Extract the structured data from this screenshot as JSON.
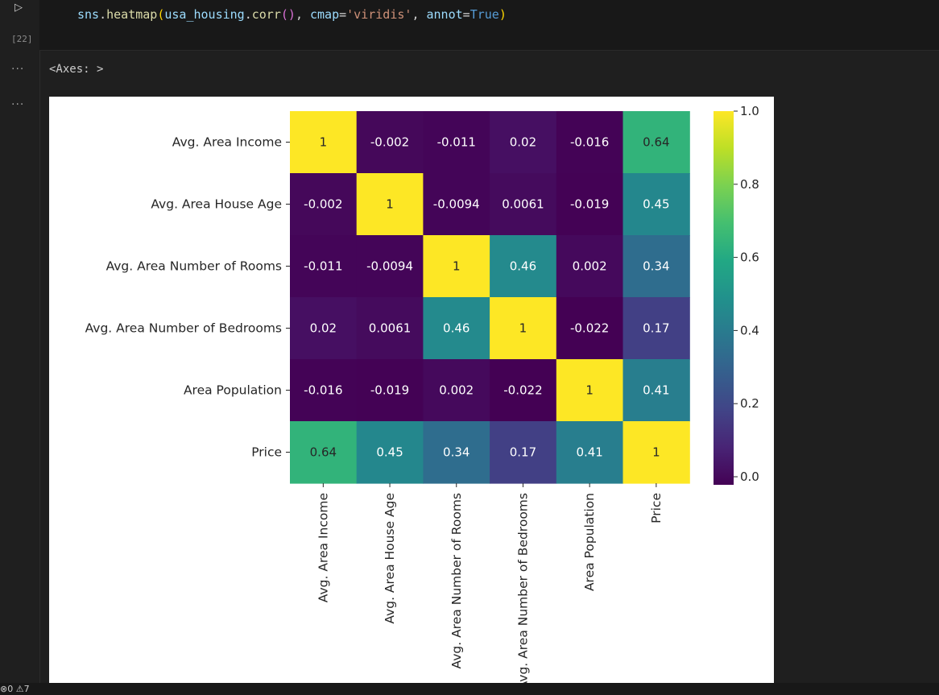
{
  "cell": {
    "exec_count": "[22]",
    "code": {
      "obj": "sns",
      "fn": "heatmap",
      "arg_obj": "usa_housing",
      "method": "corr",
      "kw1": "cmap",
      "kw1_val": "'viridis'",
      "kw2": "annot",
      "kw2_val": "True"
    }
  },
  "output": {
    "menu_1": "···",
    "menu_2": "···",
    "axes_repr": "<Axes: >"
  },
  "status_bar": {
    "text": "⊗0 ⚠7"
  },
  "chart_data": {
    "type": "heatmap",
    "colormap": "viridis",
    "labels": [
      "Avg. Area Income",
      "Avg. Area House Age",
      "Avg. Area Number of Rooms",
      "Avg. Area Number of Bedrooms",
      "Area Population",
      "Price"
    ],
    "values": [
      [
        1,
        -0.002,
        -0.011,
        0.02,
        -0.016,
        0.64
      ],
      [
        -0.002,
        1,
        -0.0094,
        0.0061,
        -0.019,
        0.45
      ],
      [
        -0.011,
        -0.0094,
        1,
        0.46,
        0.002,
        0.34
      ],
      [
        0.02,
        0.0061,
        0.46,
        1,
        -0.022,
        0.17
      ],
      [
        -0.016,
        -0.019,
        0.002,
        -0.022,
        1,
        0.41
      ],
      [
        0.64,
        0.45,
        0.34,
        0.17,
        0.41,
        1
      ]
    ],
    "annotations": [
      [
        "1",
        "-0.002",
        "-0.011",
        "0.02",
        "-0.016",
        "0.64"
      ],
      [
        "-0.002",
        "1",
        "-0.0094",
        "0.0061",
        "-0.019",
        "0.45"
      ],
      [
        "-0.011",
        "-0.0094",
        "1",
        "0.46",
        "0.002",
        "0.34"
      ],
      [
        "0.02",
        "0.0061",
        "0.46",
        "1",
        "-0.022",
        "0.17"
      ],
      [
        "-0.016",
        "-0.019",
        "0.002",
        "-0.022",
        "1",
        "0.41"
      ],
      [
        "0.64",
        "0.45",
        "0.34",
        "0.17",
        "0.41",
        "1"
      ]
    ],
    "colorbar": {
      "range": [
        -0.022,
        1.0
      ],
      "ticks": [
        0.0,
        0.2,
        0.4,
        0.6,
        0.8,
        1.0
      ],
      "tick_labels": [
        "0.0",
        "0.2",
        "0.4",
        "0.6",
        "0.8",
        "1.0"
      ]
    }
  }
}
